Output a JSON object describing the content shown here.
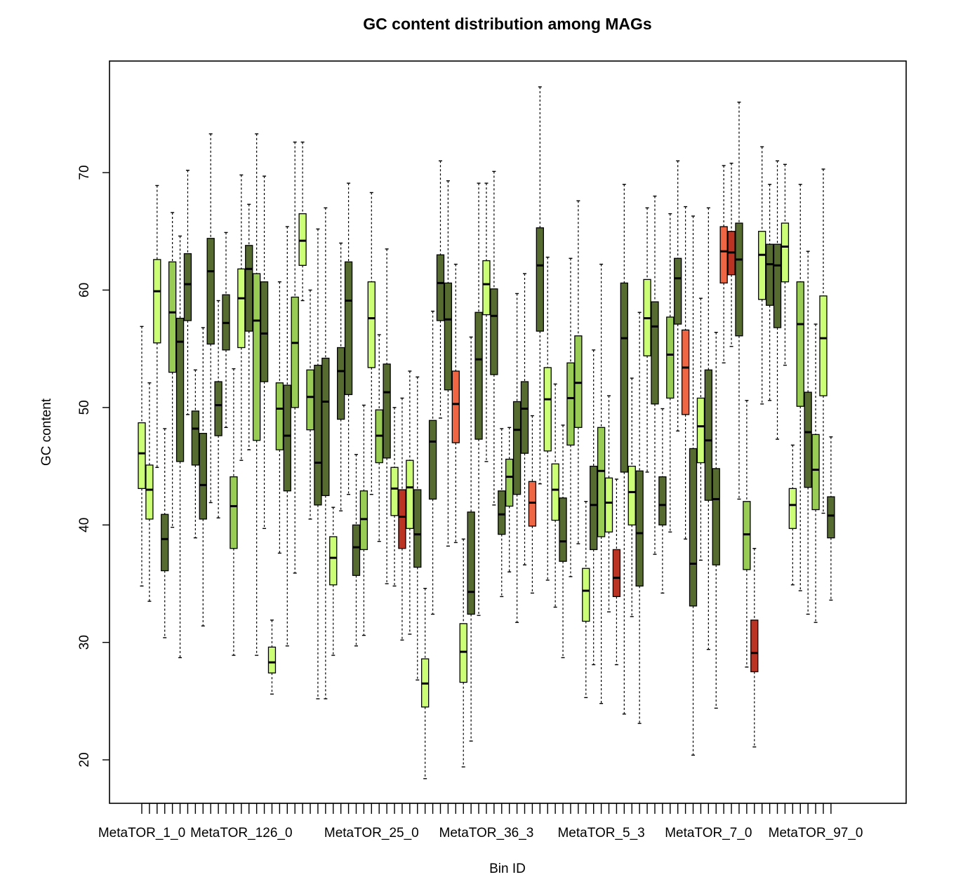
{
  "chart_data": {
    "type": "boxplot",
    "title": "GC content distribution among MAGs",
    "xlabel": "Bin ID",
    "ylabel": "GC content",
    "ylim": [
      16.3,
      79.5
    ],
    "yticks": [
      20,
      30,
      40,
      50,
      60,
      70
    ],
    "xtick_labels": [
      {
        "index": 0,
        "label": "MetaTOR_1_0"
      },
      {
        "index": 13,
        "label": "MetaTOR_126_0"
      },
      {
        "index": 30,
        "label": "MetaTOR_25_0"
      },
      {
        "index": 45,
        "label": "MetaTOR_36_3"
      },
      {
        "index": 60,
        "label": "MetaTOR_5_3"
      },
      {
        "index": 74,
        "label": "MetaTOR_7_0"
      },
      {
        "index": 88,
        "label": "MetaTOR_97_0"
      }
    ],
    "grid": false,
    "colors": {
      "light": "#ccff77",
      "mid": "#99cc55",
      "dark": "#556b2f",
      "orange": "#ee6644",
      "red": "#bb3322"
    },
    "boxes": [
      {
        "color": "light",
        "wl": 34.8,
        "q1": 43.1,
        "med": 46.1,
        "q3": 48.7,
        "wh": 56.9
      },
      {
        "color": "light",
        "wl": 33.5,
        "q1": 40.5,
        "med": 43.0,
        "q3": 45.1,
        "wh": 52.1
      },
      {
        "color": "light",
        "wl": 44.9,
        "q1": 55.5,
        "med": 59.9,
        "q3": 62.6,
        "wh": 68.9
      },
      {
        "color": "dark",
        "wl": 30.4,
        "q1": 36.1,
        "med": 38.8,
        "q3": 40.9,
        "wh": 48.2
      },
      {
        "color": "mid",
        "wl": 39.8,
        "q1": 53.0,
        "med": 58.1,
        "q3": 62.4,
        "wh": 66.6
      },
      {
        "color": "dark",
        "wl": 28.7,
        "q1": 45.4,
        "med": 55.6,
        "q3": 57.6,
        "wh": 64.6
      },
      {
        "color": "dark",
        "wl": 49.4,
        "q1": 57.4,
        "med": 60.5,
        "q3": 63.1,
        "wh": 70.2
      },
      {
        "color": "dark",
        "wl": 38.9,
        "q1": 45.1,
        "med": 48.2,
        "q3": 49.7,
        "wh": 53.2
      },
      {
        "color": "dark",
        "wl": 31.4,
        "q1": 40.5,
        "med": 43.4,
        "q3": 47.8,
        "wh": 56.8
      },
      {
        "color": "dark",
        "wl": 41.9,
        "q1": 55.4,
        "med": 61.6,
        "q3": 64.4,
        "wh": 73.3
      },
      {
        "color": "dark",
        "wl": 40.6,
        "q1": 47.6,
        "med": 50.2,
        "q3": 52.2,
        "wh": 59.1
      },
      {
        "color": "dark",
        "wl": 48.3,
        "q1": 54.9,
        "med": 57.2,
        "q3": 59.6,
        "wh": 64.9
      },
      {
        "color": "mid",
        "wl": 28.9,
        "q1": 38.0,
        "med": 41.6,
        "q3": 44.1,
        "wh": 53.3
      },
      {
        "color": "light",
        "wl": 45.5,
        "q1": 55.1,
        "med": 59.3,
        "q3": 61.8,
        "wh": 69.8
      },
      {
        "color": "dark",
        "wl": 46.4,
        "q1": 56.5,
        "med": 61.8,
        "q3": 63.8,
        "wh": 67.3
      },
      {
        "color": "mid",
        "wl": 28.9,
        "q1": 47.2,
        "med": 57.4,
        "q3": 61.4,
        "wh": 73.3
      },
      {
        "color": "dark",
        "wl": 39.7,
        "q1": 52.2,
        "med": 56.3,
        "q3": 60.7,
        "wh": 69.7
      },
      {
        "color": "light",
        "wl": 25.6,
        "q1": 27.4,
        "med": 28.3,
        "q3": 29.6,
        "wh": 31.9
      },
      {
        "color": "mid",
        "wl": 37.6,
        "q1": 46.4,
        "med": 49.9,
        "q3": 52.1,
        "wh": 60.7
      },
      {
        "color": "dark",
        "wl": 29.7,
        "q1": 42.9,
        "med": 47.6,
        "q3": 51.9,
        "wh": 65.4
      },
      {
        "color": "mid",
        "wl": 35.9,
        "q1": 50.0,
        "med": 55.5,
        "q3": 59.4,
        "wh": 72.6
      },
      {
        "color": "light",
        "wl": 59.1,
        "q1": 62.1,
        "med": 64.2,
        "q3": 66.5,
        "wh": 72.6
      },
      {
        "color": "mid",
        "wl": 40.5,
        "q1": 48.1,
        "med": 50.9,
        "q3": 53.2,
        "wh": 60.0
      },
      {
        "color": "dark",
        "wl": 25.2,
        "q1": 41.7,
        "med": 45.3,
        "q3": 53.6,
        "wh": 65.2
      },
      {
        "color": "dark",
        "wl": 25.2,
        "q1": 42.5,
        "med": 50.5,
        "q3": 54.2,
        "wh": 67.0
      },
      {
        "color": "light",
        "wl": 28.9,
        "q1": 34.9,
        "med": 37.2,
        "q3": 39.0,
        "wh": 41.5
      },
      {
        "color": "dark",
        "wl": 41.2,
        "q1": 49.0,
        "med": 53.1,
        "q3": 55.1,
        "wh": 64.0
      },
      {
        "color": "dark",
        "wl": 42.6,
        "q1": 51.1,
        "med": 59.1,
        "q3": 62.4,
        "wh": 69.1
      },
      {
        "color": "dark",
        "wl": 29.7,
        "q1": 35.7,
        "med": 38.1,
        "q3": 40.0,
        "wh": 46.0
      },
      {
        "color": "mid",
        "wl": 30.6,
        "q1": 37.9,
        "med": 40.5,
        "q3": 42.9,
        "wh": 50.2
      },
      {
        "color": "light",
        "wl": 42.6,
        "q1": 53.4,
        "med": 57.6,
        "q3": 60.7,
        "wh": 68.3
      },
      {
        "color": "mid",
        "wl": 38.6,
        "q1": 45.3,
        "med": 47.6,
        "q3": 49.8,
        "wh": 56.2
      },
      {
        "color": "dark",
        "wl": 35.0,
        "q1": 45.7,
        "med": 51.3,
        "q3": 53.7,
        "wh": 63.5
      },
      {
        "color": "light",
        "wl": 34.8,
        "q1": 40.8,
        "med": 43.1,
        "q3": 44.9,
        "wh": 50.0
      },
      {
        "color": "red",
        "wl": 30.2,
        "q1": 38.0,
        "med": 40.7,
        "q3": 43.0,
        "wh": 50.8
      },
      {
        "color": "light",
        "wl": 30.7,
        "q1": 39.7,
        "med": 43.2,
        "q3": 45.5,
        "wh": 53.1
      },
      {
        "color": "dark",
        "wl": 26.8,
        "q1": 36.4,
        "med": 39.2,
        "q3": 43.0,
        "wh": 52.6
      },
      {
        "color": "light",
        "wl": 18.4,
        "q1": 24.5,
        "med": 26.5,
        "q3": 28.6,
        "wh": 34.6
      },
      {
        "color": "dark",
        "wl": 32.4,
        "q1": 42.2,
        "med": 47.1,
        "q3": 48.9,
        "wh": 58.2
      },
      {
        "color": "dark",
        "wl": 49.1,
        "q1": 57.4,
        "med": 60.6,
        "q3": 63.0,
        "wh": 71.0
      },
      {
        "color": "dark",
        "wl": 38.2,
        "q1": 51.5,
        "med": 57.5,
        "q3": 60.6,
        "wh": 69.3
      },
      {
        "color": "orange",
        "wl": 38.5,
        "q1": 47.0,
        "med": 50.3,
        "q3": 53.1,
        "wh": 62.2
      },
      {
        "color": "light",
        "wl": 19.4,
        "q1": 26.6,
        "med": 29.2,
        "q3": 31.6,
        "wh": 38.8
      },
      {
        "color": "dark",
        "wl": 21.6,
        "q1": 32.4,
        "med": 34.3,
        "q3": 41.1,
        "wh": 56.0
      },
      {
        "color": "dark",
        "wl": 32.3,
        "q1": 47.3,
        "med": 54.1,
        "q3": 58.1,
        "wh": 69.1
      },
      {
        "color": "light",
        "wl": 45.4,
        "q1": 57.9,
        "med": 60.5,
        "q3": 62.5,
        "wh": 69.1
      },
      {
        "color": "dark",
        "wl": 41.7,
        "q1": 52.8,
        "med": 57.8,
        "q3": 60.1,
        "wh": 70.1
      },
      {
        "color": "dark",
        "wl": 33.9,
        "q1": 39.2,
        "med": 40.9,
        "q3": 42.9,
        "wh": 48.2
      },
      {
        "color": "mid",
        "wl": 36.0,
        "q1": 41.6,
        "med": 44.1,
        "q3": 45.6,
        "wh": 48.3
      },
      {
        "color": "dark",
        "wl": 31.7,
        "q1": 42.6,
        "med": 48.1,
        "q3": 50.5,
        "wh": 59.7
      },
      {
        "color": "dark",
        "wl": 36.6,
        "q1": 46.1,
        "med": 49.9,
        "q3": 52.2,
        "wh": 61.4
      },
      {
        "color": "orange",
        "wl": 34.2,
        "q1": 39.9,
        "med": 41.9,
        "q3": 43.7,
        "wh": 49.3
      },
      {
        "color": "dark",
        "wl": 43.5,
        "q1": 56.5,
        "med": 62.1,
        "q3": 65.3,
        "wh": 77.3
      },
      {
        "color": "light",
        "wl": 35.3,
        "q1": 46.3,
        "med": 50.7,
        "q3": 53.4,
        "wh": 62.8
      },
      {
        "color": "light",
        "wl": 33.0,
        "q1": 40.4,
        "med": 43.0,
        "q3": 45.2,
        "wh": 52.0
      },
      {
        "color": "dark",
        "wl": 28.7,
        "q1": 36.9,
        "med": 38.6,
        "q3": 42.3,
        "wh": 48.5
      },
      {
        "color": "mid",
        "wl": 35.6,
        "q1": 46.8,
        "med": 50.8,
        "q3": 53.8,
        "wh": 62.7
      },
      {
        "color": "mid",
        "wl": 38.4,
        "q1": 48.3,
        "med": 52.1,
        "q3": 56.1,
        "wh": 67.6
      },
      {
        "color": "light",
        "wl": 25.3,
        "q1": 31.8,
        "med": 34.4,
        "q3": 36.3,
        "wh": 42.0
      },
      {
        "color": "dark",
        "wl": 28.1,
        "q1": 37.9,
        "med": 41.7,
        "q3": 45.0,
        "wh": 54.9
      },
      {
        "color": "mid",
        "wl": 24.8,
        "q1": 39.0,
        "med": 44.6,
        "q3": 48.3,
        "wh": 62.2
      },
      {
        "color": "light",
        "wl": 32.6,
        "q1": 39.4,
        "med": 41.9,
        "q3": 44.0,
        "wh": 51.0
      },
      {
        "color": "red",
        "wl": 28.1,
        "q1": 33.9,
        "med": 35.5,
        "q3": 37.9,
        "wh": 43.9
      },
      {
        "color": "dark",
        "wl": 23.9,
        "q1": 44.5,
        "med": 55.9,
        "q3": 60.6,
        "wh": 69.0
      },
      {
        "color": "light",
        "wl": 32.2,
        "q1": 40.0,
        "med": 42.8,
        "q3": 45.0,
        "wh": 52.5
      },
      {
        "color": "dark",
        "wl": 23.1,
        "q1": 34.8,
        "med": 39.3,
        "q3": 44.6,
        "wh": 58.1
      },
      {
        "color": "light",
        "wl": 44.5,
        "q1": 54.4,
        "med": 57.6,
        "q3": 60.9,
        "wh": 67.0
      },
      {
        "color": "dark",
        "wl": 37.5,
        "q1": 50.3,
        "med": 56.9,
        "q3": 59.0,
        "wh": 68.0
      },
      {
        "color": "dark",
        "wl": 34.2,
        "q1": 40.0,
        "med": 41.7,
        "q3": 44.1,
        "wh": 49.9
      },
      {
        "color": "mid",
        "wl": 39.4,
        "q1": 50.8,
        "med": 54.5,
        "q3": 57.7,
        "wh": 66.5
      },
      {
        "color": "dark",
        "wl": 48.0,
        "q1": 57.1,
        "med": 61.0,
        "q3": 62.7,
        "wh": 71.0
      },
      {
        "color": "orange",
        "wl": 38.8,
        "q1": 49.4,
        "med": 53.4,
        "q3": 56.6,
        "wh": 67.1
      },
      {
        "color": "dark",
        "wl": 20.4,
        "q1": 33.1,
        "med": 36.7,
        "q3": 46.5,
        "wh": 66.3
      },
      {
        "color": "light",
        "wl": 37.0,
        "q1": 45.3,
        "med": 48.4,
        "q3": 50.8,
        "wh": 59.3
      },
      {
        "color": "dark",
        "wl": 29.4,
        "q1": 42.1,
        "med": 47.2,
        "q3": 53.2,
        "wh": 67.0
      },
      {
        "color": "dark",
        "wl": 24.4,
        "q1": 36.6,
        "med": 42.2,
        "q3": 44.8,
        "wh": 56.4
      },
      {
        "color": "orange",
        "wl": 53.8,
        "q1": 60.6,
        "med": 63.3,
        "q3": 65.4,
        "wh": 70.6
      },
      {
        "color": "red",
        "wl": 55.2,
        "q1": 61.3,
        "med": 63.2,
        "q3": 65.0,
        "wh": 70.8
      },
      {
        "color": "dark",
        "wl": 42.2,
        "q1": 56.1,
        "med": 62.6,
        "q3": 65.7,
        "wh": 76.0
      },
      {
        "color": "mid",
        "wl": 27.9,
        "q1": 36.2,
        "med": 39.2,
        "q3": 42.0,
        "wh": 50.6
      },
      {
        "color": "red",
        "wl": 21.1,
        "q1": 27.5,
        "med": 29.1,
        "q3": 31.9,
        "wh": 38.0
      },
      {
        "color": "light",
        "wl": 50.3,
        "q1": 59.2,
        "med": 63.0,
        "q3": 65.0,
        "wh": 72.2
      },
      {
        "color": "dark",
        "wl": 50.6,
        "q1": 58.7,
        "med": 62.2,
        "q3": 63.9,
        "wh": 69.0
      },
      {
        "color": "dark",
        "wl": 47.3,
        "q1": 56.8,
        "med": 62.1,
        "q3": 63.9,
        "wh": 71.0
      },
      {
        "color": "light",
        "wl": 53.6,
        "q1": 60.7,
        "med": 63.7,
        "q3": 65.7,
        "wh": 70.7
      },
      {
        "color": "light",
        "wl": 34.9,
        "q1": 39.7,
        "med": 41.7,
        "q3": 43.1,
        "wh": 46.8
      },
      {
        "color": "mid",
        "wl": 34.4,
        "q1": 50.1,
        "med": 57.1,
        "q3": 60.7,
        "wh": 69.0
      },
      {
        "color": "dark",
        "wl": 32.4,
        "q1": 43.2,
        "med": 47.9,
        "q3": 51.3,
        "wh": 63.3
      },
      {
        "color": "mid",
        "wl": 31.7,
        "q1": 41.3,
        "med": 44.7,
        "q3": 47.7,
        "wh": 57.1
      },
      {
        "color": "light",
        "wl": 41.0,
        "q1": 51.0,
        "med": 55.9,
        "q3": 59.5,
        "wh": 70.3
      },
      {
        "color": "dark",
        "wl": 33.6,
        "q1": 38.9,
        "med": 40.8,
        "q3": 42.4,
        "wh": 47.5
      }
    ]
  }
}
